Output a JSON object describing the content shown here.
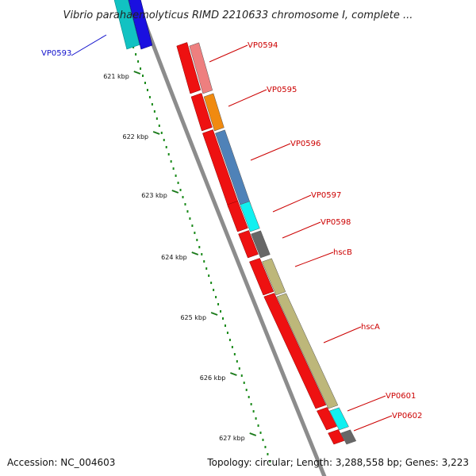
{
  "title": "Vibrio parahaemolyticus RIMD 2210633 chromosome I, complete ...",
  "footer": {
    "accession": "Accession: NC_004603",
    "summary": "Topology: circular; Length: 3,288,558 bp; Genes: 3,223"
  },
  "ticks": [
    "621 kbp",
    "622 kbp",
    "623 kbp",
    "624 kbp",
    "625 kbp",
    "626 kbp",
    "627 kbp"
  ],
  "genes": [
    {
      "label": "VP0593",
      "label_color": "#1010cc",
      "side": "outer",
      "cds_color": "#1a10e0",
      "product_color": "#11c2c2"
    },
    {
      "label": "VP0594",
      "label_color": "#cc0000",
      "side": "inner",
      "cds_color": "#ee1111",
      "product_color": "#ee7f7f"
    },
    {
      "label": "VP0595",
      "label_color": "#cc0000",
      "side": "inner",
      "cds_color": "#ee1111",
      "product_color": "#f08a10"
    },
    {
      "label": "VP0596",
      "label_color": "#cc0000",
      "side": "inner",
      "cds_color": "#ee1111",
      "product_color": "#4f82b8"
    },
    {
      "label": "VP0597",
      "label_color": "#cc0000",
      "side": "inner",
      "cds_color": "#ee1111",
      "product_color": "#12f0f0"
    },
    {
      "label": "VP0598",
      "label_color": "#cc0000",
      "side": "inner",
      "cds_color": "#ee1111",
      "product_color": "#676767"
    },
    {
      "label": "hscB",
      "label_color": "#cc0000",
      "side": "inner",
      "cds_color": "#ee1111",
      "product_color": "#bdb77a"
    },
    {
      "label": "hscA",
      "label_color": "#cc0000",
      "side": "inner",
      "cds_color": "#ee1111",
      "product_color": "#bdb77a"
    },
    {
      "label": "VP0601",
      "label_color": "#cc0000",
      "side": "inner",
      "cds_color": "#ee1111",
      "product_color": "#12f0f0"
    },
    {
      "label": "VP0602",
      "label_color": "#cc0000",
      "side": "inner",
      "cds_color": "#ee1111",
      "product_color": "#676767"
    }
  ],
  "colors": {
    "backbone": "#8c8c8c",
    "tick_mark": "#1a7a1a",
    "tick_dot": "#1a8a1a",
    "label_leader": "#dd0000"
  }
}
